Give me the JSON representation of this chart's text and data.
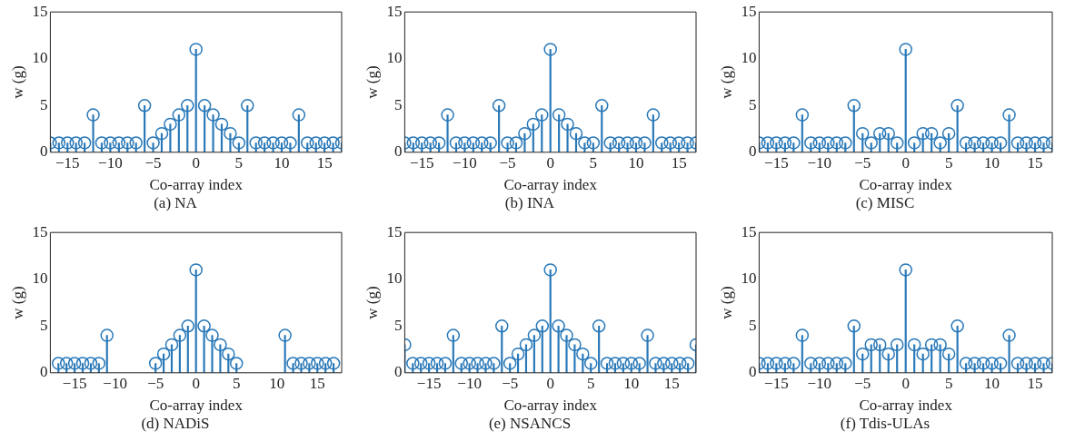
{
  "chart_data": [
    {
      "type": "lollipop",
      "title": "(a) NA",
      "xlabel": "Co-array index",
      "ylabel": "w (g)",
      "marker": "circle",
      "color": "#2878b8",
      "xlim": [
        -17,
        17
      ],
      "xticks": [
        -15,
        -10,
        -5,
        0,
        5,
        10,
        15
      ],
      "ylim": [
        0,
        15
      ],
      "yticks": [
        0,
        5,
        10,
        15
      ],
      "x": [
        -17,
        -16,
        -15,
        -14,
        -13,
        -12,
        -11,
        -10,
        -9,
        -8,
        -7,
        -6,
        -5,
        -4,
        -3,
        -2,
        -1,
        0,
        1,
        2,
        3,
        4,
        5,
        6,
        7,
        8,
        9,
        10,
        11,
        12,
        13,
        14,
        15,
        16,
        17
      ],
      "values": [
        1,
        1,
        1,
        1,
        1,
        4,
        1,
        1,
        1,
        1,
        1,
        5,
        1,
        2,
        3,
        4,
        5,
        11,
        5,
        4,
        3,
        2,
        1,
        5,
        1,
        1,
        1,
        1,
        1,
        4,
        1,
        1,
        1,
        1,
        1
      ]
    },
    {
      "type": "lollipop",
      "title": "(b) INA",
      "xlabel": "Co-array index",
      "ylabel": "w (g)",
      "marker": "circle",
      "color": "#2878b8",
      "xlim": [
        -17,
        17
      ],
      "xticks": [
        -15,
        -10,
        -5,
        0,
        5,
        10,
        15
      ],
      "ylim": [
        0,
        15
      ],
      "yticks": [
        0,
        5,
        10,
        15
      ],
      "x": [
        -17,
        -16,
        -15,
        -14,
        -13,
        -12,
        -11,
        -10,
        -9,
        -8,
        -7,
        -6,
        -5,
        -4,
        -3,
        -2,
        -1,
        0,
        1,
        2,
        3,
        4,
        5,
        6,
        7,
        8,
        9,
        10,
        11,
        12,
        13,
        14,
        15,
        16,
        17
      ],
      "values": [
        1,
        1,
        1,
        1,
        1,
        4,
        1,
        1,
        1,
        1,
        1,
        5,
        1,
        1,
        2,
        3,
        4,
        11,
        4,
        3,
        2,
        1,
        1,
        5,
        1,
        1,
        1,
        1,
        1,
        4,
        1,
        1,
        1,
        1,
        1
      ]
    },
    {
      "type": "lollipop",
      "title": "(c) MISC",
      "xlabel": "Co-array index",
      "ylabel": "w (g)",
      "marker": "circle",
      "color": "#2878b8",
      "xlim": [
        -17,
        17
      ],
      "xticks": [
        -15,
        -10,
        -5,
        0,
        5,
        10,
        15
      ],
      "ylim": [
        0,
        15
      ],
      "yticks": [
        0,
        5,
        10,
        15
      ],
      "x": [
        -17,
        -16,
        -15,
        -14,
        -13,
        -12,
        -11,
        -10,
        -9,
        -8,
        -7,
        -6,
        -5,
        -4,
        -3,
        -2,
        -1,
        0,
        1,
        2,
        3,
        4,
        5,
        6,
        7,
        8,
        9,
        10,
        11,
        12,
        13,
        14,
        15,
        16,
        17
      ],
      "values": [
        1,
        1,
        1,
        1,
        1,
        4,
        1,
        1,
        1,
        1,
        1,
        5,
        2,
        1,
        2,
        2,
        1,
        11,
        1,
        2,
        2,
        1,
        2,
        5,
        1,
        1,
        1,
        1,
        1,
        4,
        1,
        1,
        1,
        1,
        1
      ]
    },
    {
      "type": "lollipop",
      "title": "(d) NADiS",
      "xlabel": "Co-array index",
      "ylabel": "w (g)",
      "marker": "circle",
      "color": "#2878b8",
      "xlim": [
        -18,
        18
      ],
      "xticks": [
        -15,
        -10,
        -5,
        0,
        5,
        10,
        15
      ],
      "ylim": [
        0,
        15
      ],
      "yticks": [
        0,
        5,
        10,
        15
      ],
      "x": [
        -17,
        -16,
        -15,
        -14,
        -13,
        -12,
        -11,
        -5,
        -4,
        -3,
        -2,
        -1,
        0,
        1,
        2,
        3,
        4,
        5,
        11,
        12,
        13,
        14,
        15,
        16,
        17
      ],
      "values": [
        1,
        1,
        1,
        1,
        1,
        1,
        4,
        1,
        2,
        3,
        4,
        5,
        11,
        5,
        4,
        3,
        2,
        1,
        4,
        1,
        1,
        1,
        1,
        1,
        1
      ]
    },
    {
      "type": "lollipop",
      "title": "(e) NSANCS",
      "xlabel": "Co-array index",
      "ylabel": "w (g)",
      "marker": "circle",
      "color": "#2878b8",
      "xlim": [
        -18,
        18
      ],
      "xticks": [
        -15,
        -10,
        -5,
        0,
        5,
        10,
        15
      ],
      "ylim": [
        0,
        15
      ],
      "yticks": [
        0,
        5,
        10,
        15
      ],
      "x": [
        -18,
        -17,
        -16,
        -15,
        -14,
        -13,
        -12,
        -11,
        -10,
        -9,
        -8,
        -7,
        -6,
        -5,
        -4,
        -3,
        -2,
        -1,
        0,
        1,
        2,
        3,
        4,
        5,
        6,
        7,
        8,
        9,
        10,
        11,
        12,
        13,
        14,
        15,
        16,
        17,
        18
      ],
      "values": [
        3,
        1,
        1,
        1,
        1,
        1,
        4,
        1,
        1,
        1,
        1,
        1,
        5,
        1,
        2,
        3,
        4,
        5,
        11,
        5,
        4,
        3,
        2,
        1,
        5,
        1,
        1,
        1,
        1,
        1,
        4,
        1,
        1,
        1,
        1,
        1,
        3
      ]
    },
    {
      "type": "lollipop",
      "title": "(f) Tdis-ULAs",
      "xlabel": "Co-array index",
      "ylabel": "w (g)",
      "marker": "circle",
      "color": "#2878b8",
      "xlim": [
        -17,
        17
      ],
      "xticks": [
        -15,
        -10,
        -5,
        0,
        5,
        10,
        15
      ],
      "ylim": [
        0,
        15
      ],
      "yticks": [
        0,
        5,
        10,
        15
      ],
      "x": [
        -17,
        -16,
        -15,
        -14,
        -13,
        -12,
        -11,
        -10,
        -9,
        -8,
        -7,
        -6,
        -5,
        -4,
        -3,
        -2,
        -1,
        0,
        1,
        2,
        3,
        4,
        5,
        6,
        7,
        8,
        9,
        10,
        11,
        12,
        13,
        14,
        15,
        16,
        17
      ],
      "values": [
        1,
        1,
        1,
        1,
        1,
        4,
        1,
        1,
        1,
        1,
        1,
        5,
        2,
        3,
        3,
        2,
        3,
        11,
        3,
        2,
        3,
        3,
        2,
        5,
        1,
        1,
        1,
        1,
        1,
        4,
        1,
        1,
        1,
        1,
        1
      ]
    }
  ]
}
